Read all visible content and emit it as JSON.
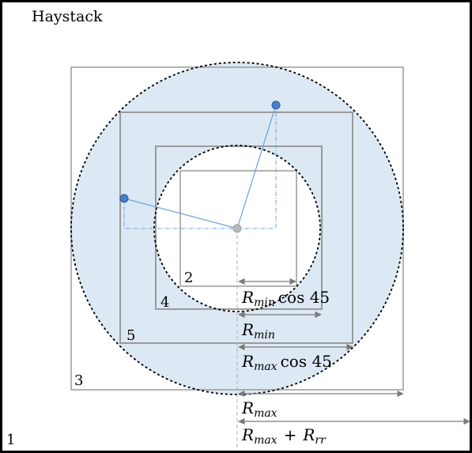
{
  "title": "Haystack",
  "regions": {
    "outer": "1",
    "square_3": "3",
    "square_5": "5",
    "square_4": "4",
    "square_2": "2"
  },
  "labels": {
    "rmin_cos": {
      "base": "R",
      "sub": "min",
      "tail": "cos 45"
    },
    "rmin": {
      "base": "R",
      "sub": "min"
    },
    "rmax_cos": {
      "base": "R",
      "sub": "max",
      "tail": "cos 45"
    },
    "rmax": {
      "base": "R",
      "sub": "max"
    },
    "rmax_rrr": {
      "base": "R",
      "sub": "max",
      "plus": "+",
      "base2": "R",
      "sub2": "rr"
    }
  },
  "colors": {
    "ring_fill": "#dce8f4",
    "square_stroke": "#9a9a9a",
    "dashed_circle": "#000000",
    "point_fill": "#4a7fd0",
    "point_stroke": "#2c5aa0",
    "line": "#6aa0dc",
    "center": "#b0b0b0",
    "arrow": "#7a7a7a"
  }
}
